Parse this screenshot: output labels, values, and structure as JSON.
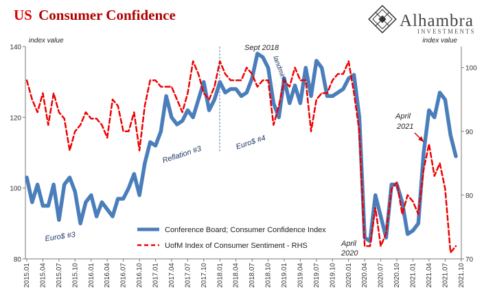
{
  "title_prefix": "US",
  "title_rest": "Consumer Confidence",
  "logo": {
    "name": "Alhambra",
    "sub": "INVESTMENTS"
  },
  "colors": {
    "title_red": "#e00000",
    "series1": "#4a7ebb",
    "series2": "#ee0000",
    "annotation": "#1f3864"
  },
  "chart_data": {
    "type": "line",
    "x_ticks": [
      "2015.01",
      "2015.04",
      "2015.07",
      "2015.10",
      "2016.01",
      "2016.04",
      "2016.07",
      "2016.10",
      "2017.01",
      "2017.04",
      "2017.07",
      "2017.10",
      "2018.01",
      "2018.04",
      "2018.07",
      "2018.10",
      "2019.01",
      "2019.04",
      "2019.07",
      "2019.10",
      "2020.01",
      "2020.04",
      "2020.07",
      "2020.10",
      "2021.01",
      "2021.04",
      "2021.07",
      "2021.10"
    ],
    "left_axis": {
      "label": "index value",
      "ylim": [
        80,
        140
      ],
      "ticks": [
        80,
        100,
        120,
        140
      ]
    },
    "right_axis": {
      "label": "index value",
      "ylim": [
        70,
        103.3
      ],
      "ticks": [
        70,
        80,
        90,
        100
      ]
    },
    "grid": false,
    "legend_position": "bottom-center",
    "series": [
      {
        "name": "Conference Board; Consumer Confidence Index",
        "axis": "left",
        "values": [
          103,
          96,
          101,
          95,
          95,
          101,
          91,
          101,
          103,
          99,
          90,
          96,
          98,
          92,
          96,
          94,
          92,
          97,
          97,
          100,
          104,
          98,
          107,
          113,
          112,
          116,
          126,
          120,
          118,
          119,
          122,
          120,
          125,
          130,
          122,
          125,
          130,
          127,
          128,
          128,
          126,
          127,
          131,
          138,
          137,
          134,
          124,
          120,
          131,
          124,
          129,
          124,
          134,
          126,
          136,
          134,
          126,
          126,
          127,
          128,
          131,
          132,
          120,
          86,
          85,
          98,
          92,
          86,
          101,
          101,
          96,
          87,
          88,
          90,
          110,
          122,
          120,
          127,
          125,
          115,
          109
        ],
        "color": "#4a7ebb",
        "style": "solid-thick"
      },
      {
        "name": "UofM Index of Consumer Sentiment - RHS",
        "axis": "right",
        "values": [
          98,
          95,
          93,
          96,
          91,
          96,
          93,
          92,
          87,
          90,
          91,
          93,
          92,
          92,
          91,
          89,
          95,
          94,
          90,
          90,
          93,
          87,
          94,
          98,
          98,
          97,
          97,
          97,
          95,
          93,
          96,
          101,
          99,
          96,
          95,
          97,
          101,
          99,
          98,
          98,
          98,
          100,
          99,
          97,
          98,
          98,
          91,
          94,
          98,
          97,
          100,
          98,
          98,
          90,
          95,
          96,
          96,
          98,
          99,
          99,
          101,
          96,
          90,
          72,
          72,
          78,
          72,
          74,
          81,
          82,
          77,
          80,
          79,
          77,
          84,
          88,
          83,
          85,
          81,
          71,
          72
        ],
        "color": "#ee0000",
        "style": "dashed"
      }
    ],
    "annotations": {
      "euro3_a": "Euro$ #3",
      "reflation3": "Reflation #3",
      "euro4": "Euro$ #4",
      "sept2018": "Sept 2018",
      "landmine": "landmine",
      "april2020_a": "April",
      "april2020_b": "2020",
      "april2021_a": "April",
      "april2021_b": "2021"
    }
  }
}
